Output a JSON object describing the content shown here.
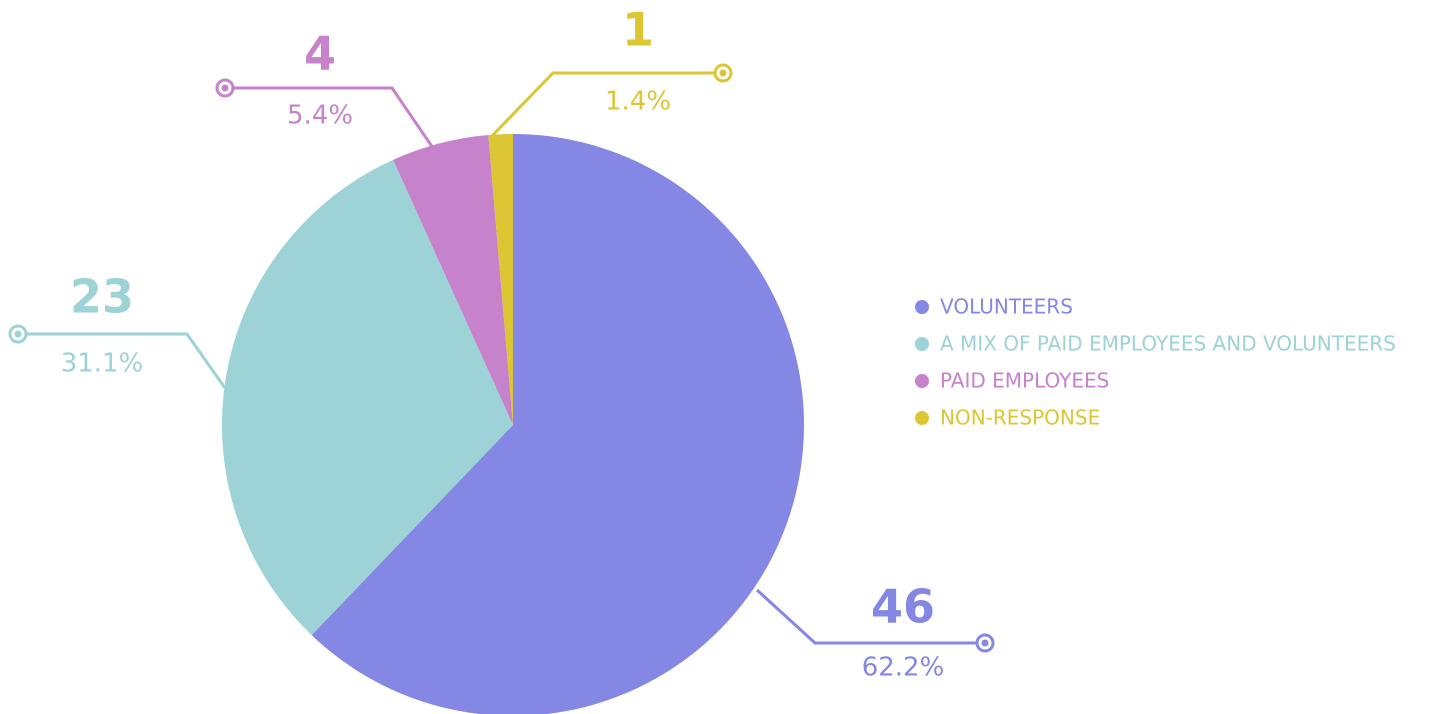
{
  "chart_data": {
    "type": "pie",
    "categories": [
      "VOLUNTEERS",
      "A MIX OF PAID EMPLOYEES AND VOLUNTEERS",
      "PAID EMPLOYEES",
      "NON-RESPONSE"
    ],
    "values": [
      46,
      23,
      4,
      1
    ],
    "percent_labels": [
      "62.2%",
      "31.1%",
      "5.4%",
      "1.4%"
    ],
    "colors": [
      "#8488e4",
      "#9dd2d6",
      "#c683cc",
      "#dcc634"
    ],
    "legend": "right"
  }
}
